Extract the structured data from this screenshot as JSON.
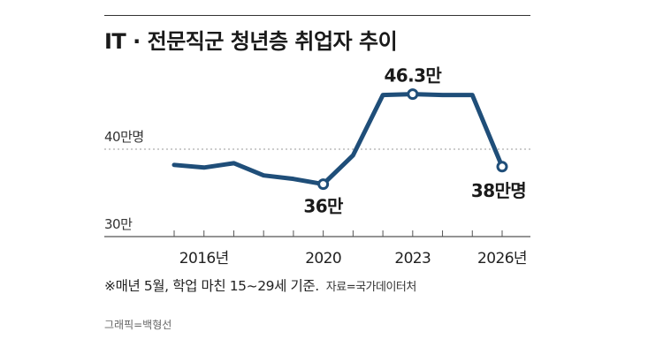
{
  "title": "IT · 전문직군 청년층 취업자 추이",
  "footnote": "※매년 5월, 학업 마친 15~29세 기준.",
  "source": "자료=국가데이터처",
  "credit": "그래픽=백형선",
  "colors": {
    "line": "#1f4e79",
    "grid": "#999999",
    "text": "#222222"
  },
  "chart_data": {
    "type": "line",
    "title": "IT · 전문직군 청년층 취업자 추이",
    "xlabel": "",
    "ylabel": "",
    "x": [
      2015,
      2016,
      2017,
      2018,
      2019,
      2020,
      2021,
      2022,
      2023,
      2024,
      2025,
      2026
    ],
    "values": [
      38.2,
      37.9,
      38.4,
      37.0,
      36.6,
      36.0,
      39.3,
      46.2,
      46.3,
      46.2,
      46.2,
      38.0
    ],
    "ylim": [
      30,
      48
    ],
    "y_gridlines": [
      {
        "value": 40,
        "label": "40만명"
      },
      {
        "value": 30,
        "label": "30만"
      }
    ],
    "x_tick_labels": [
      {
        "x": 2016,
        "label": "2016년"
      },
      {
        "x": 2020,
        "label": "2020"
      },
      {
        "x": 2023,
        "label": "2023"
      },
      {
        "x": 2026,
        "label": "2026년"
      }
    ],
    "annotations": [
      {
        "x": 2020,
        "y": 36.0,
        "label": "36만"
      },
      {
        "x": 2023,
        "y": 46.3,
        "label": "46.3만"
      },
      {
        "x": 2026,
        "y": 38.0,
        "label": "38만명"
      }
    ],
    "grid": true,
    "legend": "none"
  }
}
